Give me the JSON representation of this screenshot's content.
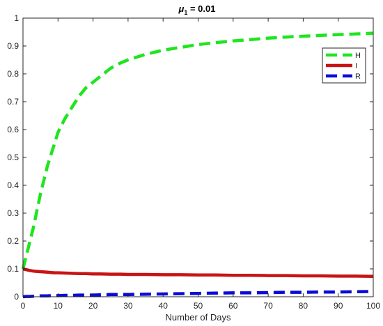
{
  "chart_data": {
    "type": "line",
    "title_symbol": "μ",
    "title_subscript": "1",
    "title_value": " = 0.01",
    "xlabel": "Number of Days",
    "ylabel": "",
    "xlim": [
      0,
      100
    ],
    "ylim": [
      0,
      1
    ],
    "xticks": [
      0,
      10,
      20,
      30,
      40,
      50,
      60,
      70,
      80,
      90,
      100
    ],
    "yticks": [
      0,
      0.1,
      0.2,
      0.3,
      0.4,
      0.5,
      0.6,
      0.7,
      0.8,
      0.9,
      1
    ],
    "grid": false,
    "legend_position": "top-right",
    "x": [
      0,
      1,
      2,
      3,
      4,
      5,
      6,
      7,
      8,
      9,
      10,
      12,
      14,
      16,
      18,
      20,
      22,
      25,
      28,
      30,
      35,
      40,
      45,
      50,
      55,
      60,
      65,
      70,
      75,
      80,
      85,
      90,
      95,
      100
    ],
    "series": [
      {
        "name": "H",
        "color": "#1fe51f",
        "dash": "dashed",
        "values": [
          0.1,
          0.15,
          0.2,
          0.25,
          0.31,
          0.37,
          0.42,
          0.47,
          0.51,
          0.55,
          0.59,
          0.64,
          0.68,
          0.72,
          0.75,
          0.77,
          0.79,
          0.82,
          0.84,
          0.85,
          0.87,
          0.885,
          0.895,
          0.905,
          0.912,
          0.918,
          0.923,
          0.928,
          0.932,
          0.935,
          0.938,
          0.941,
          0.943,
          0.946
        ]
      },
      {
        "name": "I",
        "color": "#c81414",
        "dash": "solid",
        "values": [
          0.1,
          0.097,
          0.094,
          0.092,
          0.091,
          0.09,
          0.089,
          0.088,
          0.087,
          0.086,
          0.086,
          0.085,
          0.084,
          0.083,
          0.083,
          0.082,
          0.082,
          0.081,
          0.081,
          0.08,
          0.08,
          0.079,
          0.079,
          0.078,
          0.078,
          0.077,
          0.077,
          0.076,
          0.076,
          0.075,
          0.075,
          0.074,
          0.074,
          0.073
        ]
      },
      {
        "name": "R",
        "color": "#0b0bd8",
        "dash": "dashed",
        "values": [
          0,
          0.001,
          0.001,
          0.002,
          0.002,
          0.003,
          0.003,
          0.003,
          0.004,
          0.004,
          0.004,
          0.005,
          0.005,
          0.006,
          0.006,
          0.006,
          0.007,
          0.008,
          0.008,
          0.008,
          0.009,
          0.01,
          0.011,
          0.012,
          0.013,
          0.014,
          0.014,
          0.015,
          0.016,
          0.016,
          0.017,
          0.017,
          0.018,
          0.019
        ]
      }
    ]
  }
}
